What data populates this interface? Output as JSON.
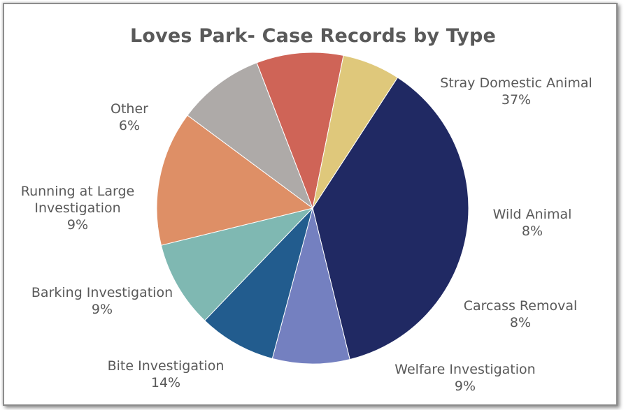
{
  "chart_data": {
    "type": "pie",
    "title": "Loves Park- Case Records by Type",
    "slices": [
      {
        "name": "Stray Domestic Animal",
        "value": 37,
        "label_lines": [
          "Stray Domestic Animal"
        ],
        "pct_label": "37%",
        "color": "#202963"
      },
      {
        "name": "Wild Animal",
        "value": 8,
        "label_lines": [
          "Wild Animal"
        ],
        "pct_label": "8%",
        "color": "#7480c0"
      },
      {
        "name": "Carcass Removal",
        "value": 8,
        "label_lines": [
          "Carcass Removal"
        ],
        "pct_label": "8%",
        "color": "#225c8e"
      },
      {
        "name": "Welfare Investigation",
        "value": 9,
        "label_lines": [
          "Welfare Investigation"
        ],
        "pct_label": "9%",
        "color": "#7fb8b2"
      },
      {
        "name": "Bite Investigation",
        "value": 14,
        "label_lines": [
          "Bite Investigation"
        ],
        "pct_label": "14%",
        "color": "#de8f66"
      },
      {
        "name": "Barking Investigation",
        "value": 9,
        "label_lines": [
          "Barking Investigation"
        ],
        "pct_label": "9%",
        "color": "#aeaaa8"
      },
      {
        "name": "Running at Large Investigation",
        "value": 9,
        "label_lines": [
          "Running at Large",
          "Investigation"
        ],
        "pct_label": "9%",
        "color": "#cf6457"
      },
      {
        "name": "Other",
        "value": 6,
        "label_lines": [
          "Other"
        ],
        "pct_label": "6%",
        "color": "#dfc87b"
      }
    ],
    "legend": "none (data labels outside slices)"
  }
}
